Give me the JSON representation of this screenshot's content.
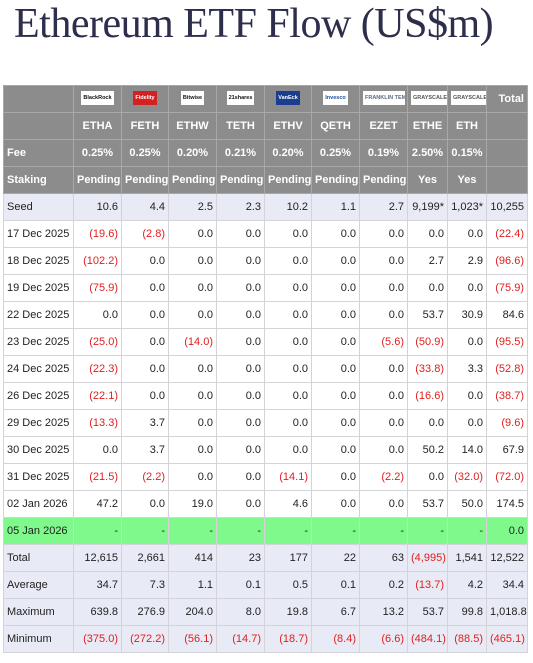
{
  "title": "Ethereum ETF Flow (US$m)",
  "table": {
    "logos": [
      "BlackRock",
      "Fidelity",
      "Bitwise",
      "21shares",
      "VanEck",
      "Invesco",
      "FRANKLIN TEMPLETON",
      "GRAYSCALE",
      "GRAYSCALE"
    ],
    "total_header": "Total",
    "tickers": [
      "ETHA",
      "FETH",
      "ETHW",
      "TETH",
      "ETHV",
      "QETH",
      "EZET",
      "ETHE",
      "ETH"
    ],
    "rows": [
      [
        "Fee",
        "0.25%",
        "0.25%",
        "0.20%",
        "0.21%",
        "0.20%",
        "0.25%",
        "0.19%",
        "2.50%",
        "0.15%"
      ],
      [
        "Staking",
        "Pending",
        "Pending",
        "Pending",
        "Pending",
        "Pending",
        "Pending",
        "Pending",
        "Yes",
        "Yes"
      ],
      [
        "Seed",
        "10.6",
        "4.4",
        "2.5",
        "2.3",
        "10.2",
        "1.1",
        "2.7",
        "9,199*",
        "1,023*",
        "10,255"
      ],
      [
        "17 Dec 2025",
        "(19.6)",
        "(2.8)",
        "0.0",
        "0.0",
        "0.0",
        "0.0",
        "0.0",
        "0.0",
        "0.0",
        "(22.4)"
      ],
      [
        "18 Dec 2025",
        "(102.2)",
        "0.0",
        "0.0",
        "0.0",
        "0.0",
        "0.0",
        "0.0",
        "2.7",
        "2.9",
        "(96.6)"
      ],
      [
        "19 Dec 2025",
        "(75.9)",
        "0.0",
        "0.0",
        "0.0",
        "0.0",
        "0.0",
        "0.0",
        "0.0",
        "0.0",
        "(75.9)"
      ],
      [
        "22 Dec 2025",
        "0.0",
        "0.0",
        "0.0",
        "0.0",
        "0.0",
        "0.0",
        "0.0",
        "53.7",
        "30.9",
        "84.6"
      ],
      [
        "23 Dec 2025",
        "(25.0)",
        "0.0",
        "(14.0)",
        "0.0",
        "0.0",
        "0.0",
        "(5.6)",
        "(50.9)",
        "0.0",
        "(95.5)"
      ],
      [
        "24 Dec 2025",
        "(22.3)",
        "0.0",
        "0.0",
        "0.0",
        "0.0",
        "0.0",
        "0.0",
        "(33.8)",
        "3.3",
        "(52.8)"
      ],
      [
        "26 Dec 2025",
        "(22.1)",
        "0.0",
        "0.0",
        "0.0",
        "0.0",
        "0.0",
        "0.0",
        "(16.6)",
        "0.0",
        "(38.7)"
      ],
      [
        "29 Dec 2025",
        "(13.3)",
        "3.7",
        "0.0",
        "0.0",
        "0.0",
        "0.0",
        "0.0",
        "0.0",
        "0.0",
        "(9.6)"
      ],
      [
        "30 Dec 2025",
        "0.0",
        "3.7",
        "0.0",
        "0.0",
        "0.0",
        "0.0",
        "0.0",
        "50.2",
        "14.0",
        "67.9"
      ],
      [
        "31 Dec 2025",
        "(21.5)",
        "(2.2)",
        "0.0",
        "0.0",
        "(14.1)",
        "0.0",
        "(2.2)",
        "0.0",
        "(32.0)",
        "(72.0)"
      ],
      [
        "02 Jan 2026",
        "47.2",
        "0.0",
        "19.0",
        "0.0",
        "4.6",
        "0.0",
        "0.0",
        "53.7",
        "50.0",
        "174.5"
      ],
      [
        "05 Jan 2026",
        "-",
        "-",
        "-",
        "-",
        "-",
        "-",
        "-",
        "-",
        "-",
        "0.0"
      ],
      [
        "Total",
        "12,615",
        "2,661",
        "414",
        "23",
        "177",
        "22",
        "63",
        "(4,995)",
        "1,541",
        "12,522"
      ],
      [
        "Average",
        "34.7",
        "7.3",
        "1.1",
        "0.1",
        "0.5",
        "0.1",
        "0.2",
        "(13.7)",
        "4.2",
        "34.4"
      ],
      [
        "Maximum",
        "639.8",
        "276.9",
        "204.0",
        "8.0",
        "19.8",
        "6.7",
        "13.2",
        "53.7",
        "99.8",
        "1,018.8"
      ],
      [
        "Minimum",
        "(375.0)",
        "(272.2)",
        "(56.1)",
        "(14.7)",
        "(18.7)",
        "(8.4)",
        "(6.6)",
        "(484.1)",
        "(88.5)",
        "(465.1)"
      ]
    ]
  }
}
